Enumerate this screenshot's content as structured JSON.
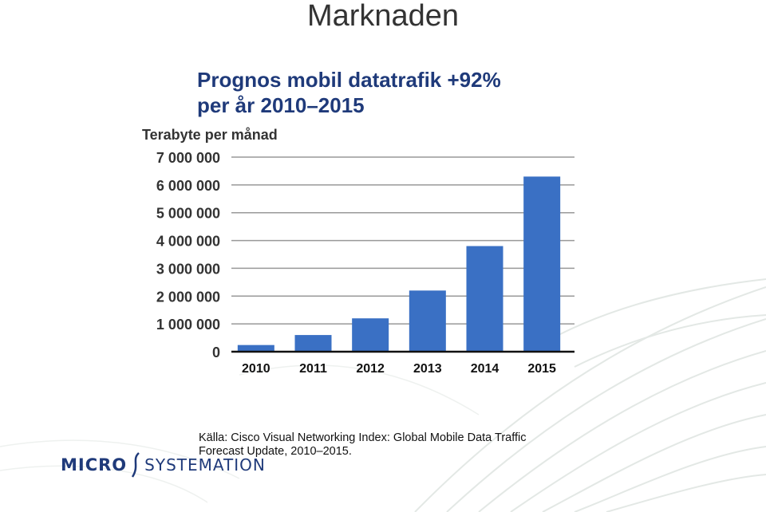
{
  "slide": {
    "title": "Marknaden"
  },
  "chart_data": {
    "type": "bar",
    "title_lines": [
      "Prognos mobil datatrafik +92%",
      "per år 2010–2015"
    ],
    "ylabel": "Terabyte per månad",
    "xlabel": "",
    "categories": [
      "2010",
      "2011",
      "2012",
      "2013",
      "2014",
      "2015"
    ],
    "values": [
      240000,
      600000,
      1200000,
      2200000,
      3800000,
      6300000
    ],
    "ylim": [
      0,
      7000000
    ],
    "yticks": [
      0,
      1000000,
      2000000,
      3000000,
      4000000,
      5000000,
      6000000,
      7000000
    ],
    "ytick_labels": [
      "0",
      "1 000 000",
      "2 000 000",
      "3 000 000",
      "4 000 000",
      "5 000 000",
      "6 000 000",
      "7 000 000"
    ],
    "grid": true,
    "bar_color": "#3a70c4"
  },
  "source": {
    "line1": "Källa: Cisco Visual Networking Index: Global Mobile Data Traffic",
    "line2": "Forecast Update, 2010–2015."
  },
  "logo": {
    "left": "MICRO",
    "right": "SYSTEMATION",
    "color": "#1f3a7a"
  }
}
